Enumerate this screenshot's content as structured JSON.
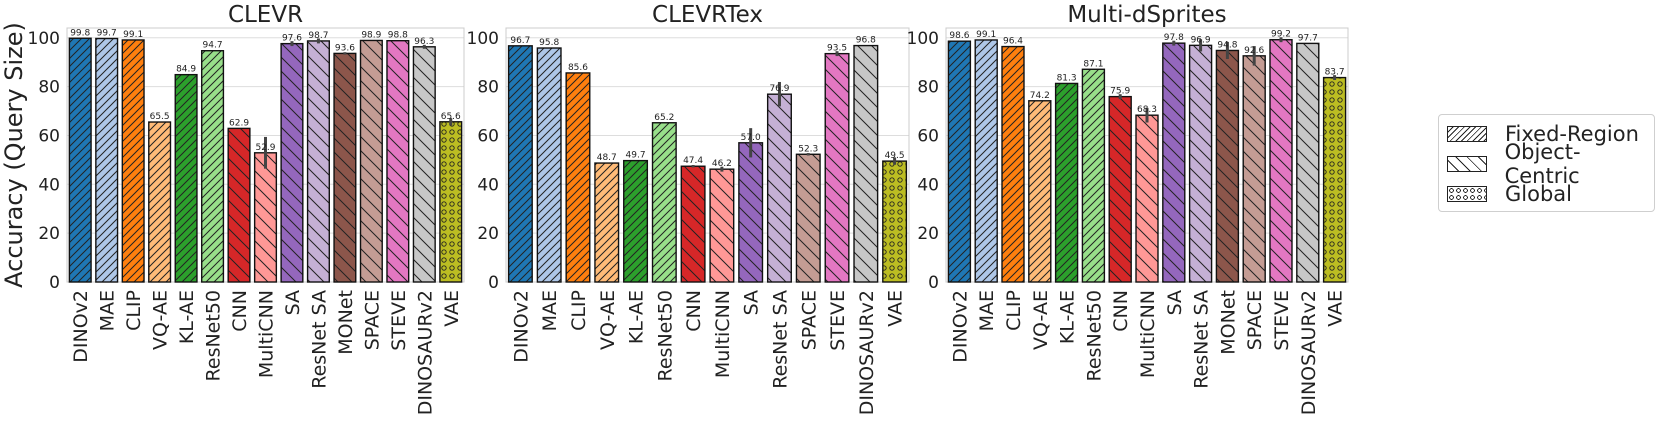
{
  "chart_data": [
    {
      "type": "bar",
      "title": "CLEVR",
      "ylabel": "Accuracy (Query Size)",
      "xlabel": "",
      "ylim": [
        0,
        104
      ],
      "yticks": [
        0,
        20,
        40,
        60,
        80,
        100
      ],
      "grid": "horizontal",
      "categories": [
        "DINOv2",
        "MAE",
        "CLIP",
        "VQ-AE",
        "KL-AE",
        "ResNet50",
        "CNN",
        "MultiCNN",
        "SA",
        "ResNet SA",
        "MONet",
        "SPACE",
        "STEVE",
        "DINOSAURv2",
        "VAE"
      ],
      "values": [
        99.8,
        99.7,
        99.1,
        65.5,
        84.9,
        94.7,
        62.9,
        52.9,
        97.6,
        98.7,
        93.6,
        98.9,
        98.8,
        96.3,
        65.6
      ],
      "errors": [
        0,
        0,
        0,
        0,
        0,
        0,
        0,
        6.5,
        1.0,
        1.0,
        0.5,
        0,
        0,
        0.8,
        1.5
      ]
    },
    {
      "type": "bar",
      "title": "CLEVRTex",
      "ylabel": "",
      "xlabel": "",
      "ylim": [
        0,
        104
      ],
      "yticks": [
        0,
        20,
        40,
        60,
        80,
        100
      ],
      "grid": "horizontal",
      "categories": [
        "DINOv2",
        "MAE",
        "CLIP",
        "VQ-AE",
        "KL-AE",
        "ResNet50",
        "CNN",
        "MultiCNN",
        "SA",
        "ResNet SA",
        "SPACE",
        "STEVE",
        "DINOSAURv2",
        "VAE"
      ],
      "values": [
        96.7,
        95.8,
        85.6,
        48.7,
        49.7,
        65.2,
        47.4,
        46.2,
        57.0,
        76.9,
        52.3,
        93.5,
        96.8,
        49.5
      ],
      "errors": [
        0,
        0,
        0,
        0,
        0,
        0,
        0.5,
        1.0,
        6.0,
        5.0,
        0.5,
        1.0,
        0,
        1.5
      ]
    },
    {
      "type": "bar",
      "title": "Multi-dSprites",
      "ylabel": "",
      "xlabel": "",
      "ylim": [
        0,
        104
      ],
      "yticks": [
        0,
        20,
        40,
        60,
        80,
        100
      ],
      "grid": "horizontal",
      "categories": [
        "DINOv2",
        "MAE",
        "CLIP",
        "VQ-AE",
        "KL-AE",
        "ResNet50",
        "CNN",
        "MultiCNN",
        "SA",
        "ResNet SA",
        "MONet",
        "SPACE",
        "STEVE",
        "DINOSAURv2",
        "VAE"
      ],
      "values": [
        98.6,
        99.1,
        96.4,
        74.2,
        81.3,
        87.1,
        75.9,
        68.3,
        97.8,
        96.9,
        94.8,
        92.6,
        99.2,
        97.7,
        83.7
      ],
      "errors": [
        0,
        0,
        0,
        0,
        0,
        0,
        1.0,
        3.0,
        1.0,
        2.5,
        3.5,
        4.0,
        1.0,
        0,
        1.0
      ]
    }
  ],
  "methods": {
    "DINOv2": {
      "color": "#1f77b4",
      "hatch": "fixed"
    },
    "MAE": {
      "color": "#aec7e8",
      "hatch": "fixed"
    },
    "CLIP": {
      "color": "#ff7f0e",
      "hatch": "fixed"
    },
    "VQ-AE": {
      "color": "#ffbb78",
      "hatch": "fixed"
    },
    "KL-AE": {
      "color": "#2ca02c",
      "hatch": "fixed"
    },
    "ResNet50": {
      "color": "#98df8a",
      "hatch": "fixed"
    },
    "CNN": {
      "color": "#d62728",
      "hatch": "object"
    },
    "MultiCNN": {
      "color": "#ff9896",
      "hatch": "object"
    },
    "SA": {
      "color": "#9467bd",
      "hatch": "object"
    },
    "ResNet SA": {
      "color": "#c5b0d5",
      "hatch": "object"
    },
    "MONet": {
      "color": "#8c564b",
      "hatch": "object"
    },
    "SPACE": {
      "color": "#c49c94",
      "hatch": "object"
    },
    "STEVE": {
      "color": "#e377c2",
      "hatch": "object"
    },
    "DINOSAURv2": {
      "color": "#c7c7c7",
      "hatch": "object"
    },
    "VAE": {
      "color": "#bcbd22",
      "hatch": "global"
    }
  },
  "legend": {
    "placement": "right",
    "items": [
      {
        "label": "Fixed-Region",
        "hatch": "fixed"
      },
      {
        "label": "Object-Centric",
        "hatch": "object"
      },
      {
        "label": "Global",
        "hatch": "global"
      }
    ]
  }
}
